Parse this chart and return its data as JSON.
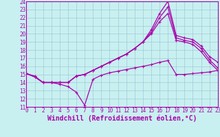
{
  "xlabel": "Windchill (Refroidissement éolien,°C)",
  "xlim": [
    0,
    23
  ],
  "ylim": [
    11,
    24
  ],
  "xticks": [
    0,
    1,
    2,
    3,
    4,
    5,
    6,
    7,
    8,
    9,
    10,
    11,
    12,
    13,
    14,
    15,
    16,
    17,
    18,
    19,
    20,
    21,
    22,
    23
  ],
  "yticks": [
    11,
    12,
    13,
    14,
    15,
    16,
    17,
    18,
    19,
    20,
    21,
    22,
    23,
    24
  ],
  "bg_color": "#c8f0f0",
  "grid_color": "#a0c8d8",
  "line_color": "#aa00aa",
  "lines_x": [
    0,
    1,
    2,
    3,
    4,
    5,
    6,
    7,
    8,
    9,
    10,
    11,
    12,
    13,
    14,
    15,
    16,
    17,
    18,
    19,
    20,
    21,
    22,
    23
  ],
  "line1_y": [
    15.1,
    14.8,
    14.0,
    14.0,
    13.8,
    13.5,
    12.8,
    11.2,
    14.4,
    14.9,
    15.2,
    15.4,
    15.6,
    15.8,
    16.0,
    16.2,
    16.5,
    16.7,
    15.0,
    15.0,
    15.1,
    15.2,
    15.3,
    15.5
  ],
  "line2_y": [
    15.1,
    14.7,
    14.0,
    14.0,
    14.0,
    14.0,
    14.8,
    15.0,
    15.5,
    16.0,
    16.5,
    17.0,
    17.5,
    18.2,
    19.0,
    20.5,
    22.5,
    24.0,
    19.8,
    19.5,
    19.3,
    18.5,
    17.2,
    16.5
  ],
  "line3_y": [
    15.1,
    14.7,
    14.0,
    14.0,
    14.0,
    14.0,
    14.8,
    15.0,
    15.5,
    16.0,
    16.5,
    17.0,
    17.5,
    18.2,
    19.0,
    20.2,
    22.0,
    23.3,
    19.5,
    19.2,
    19.0,
    18.2,
    16.8,
    15.8
  ],
  "line4_y": [
    15.1,
    14.7,
    14.0,
    14.0,
    14.0,
    14.0,
    14.8,
    15.0,
    15.5,
    16.0,
    16.5,
    17.0,
    17.5,
    18.2,
    19.0,
    20.0,
    21.5,
    22.5,
    19.2,
    19.0,
    18.7,
    17.8,
    16.5,
    15.5
  ],
  "marker": "+",
  "markersize": 3.5,
  "linewidth": 0.9,
  "tick_fontsize": 5.5,
  "xlabel_fontsize": 7,
  "figsize": [
    3.2,
    2.0
  ],
  "dpi": 100
}
